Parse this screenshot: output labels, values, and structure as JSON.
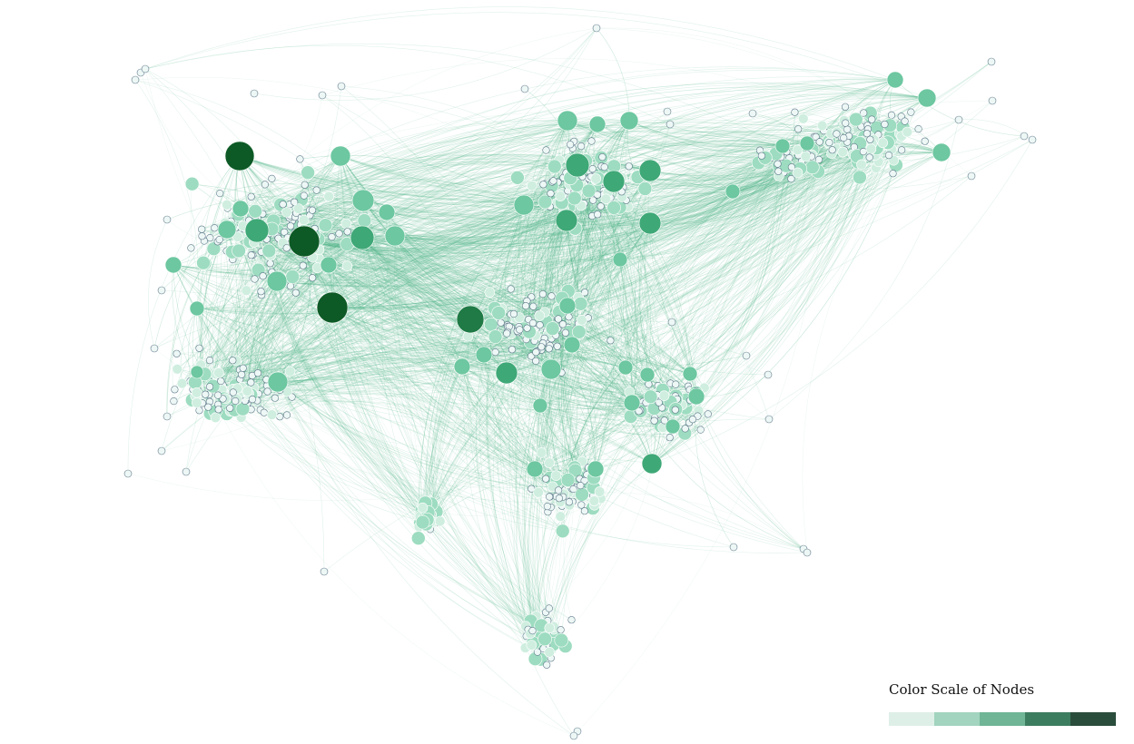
{
  "legend": {
    "title": "Color Scale of Nodes",
    "colors": [
      "#deefe7",
      "#a2d4bf",
      "#6fb596",
      "#3d7d5f",
      "#2b4d3c"
    ]
  },
  "palette": {
    "edge": "#55b58a",
    "node_stroke": "#3f5d72",
    "node_fill_scale": [
      "#edf7f5",
      "#cfeee0",
      "#9ddcc0",
      "#6dc7a0",
      "#3fa877",
      "#1f7a45",
      "#0d5a26"
    ]
  }
}
